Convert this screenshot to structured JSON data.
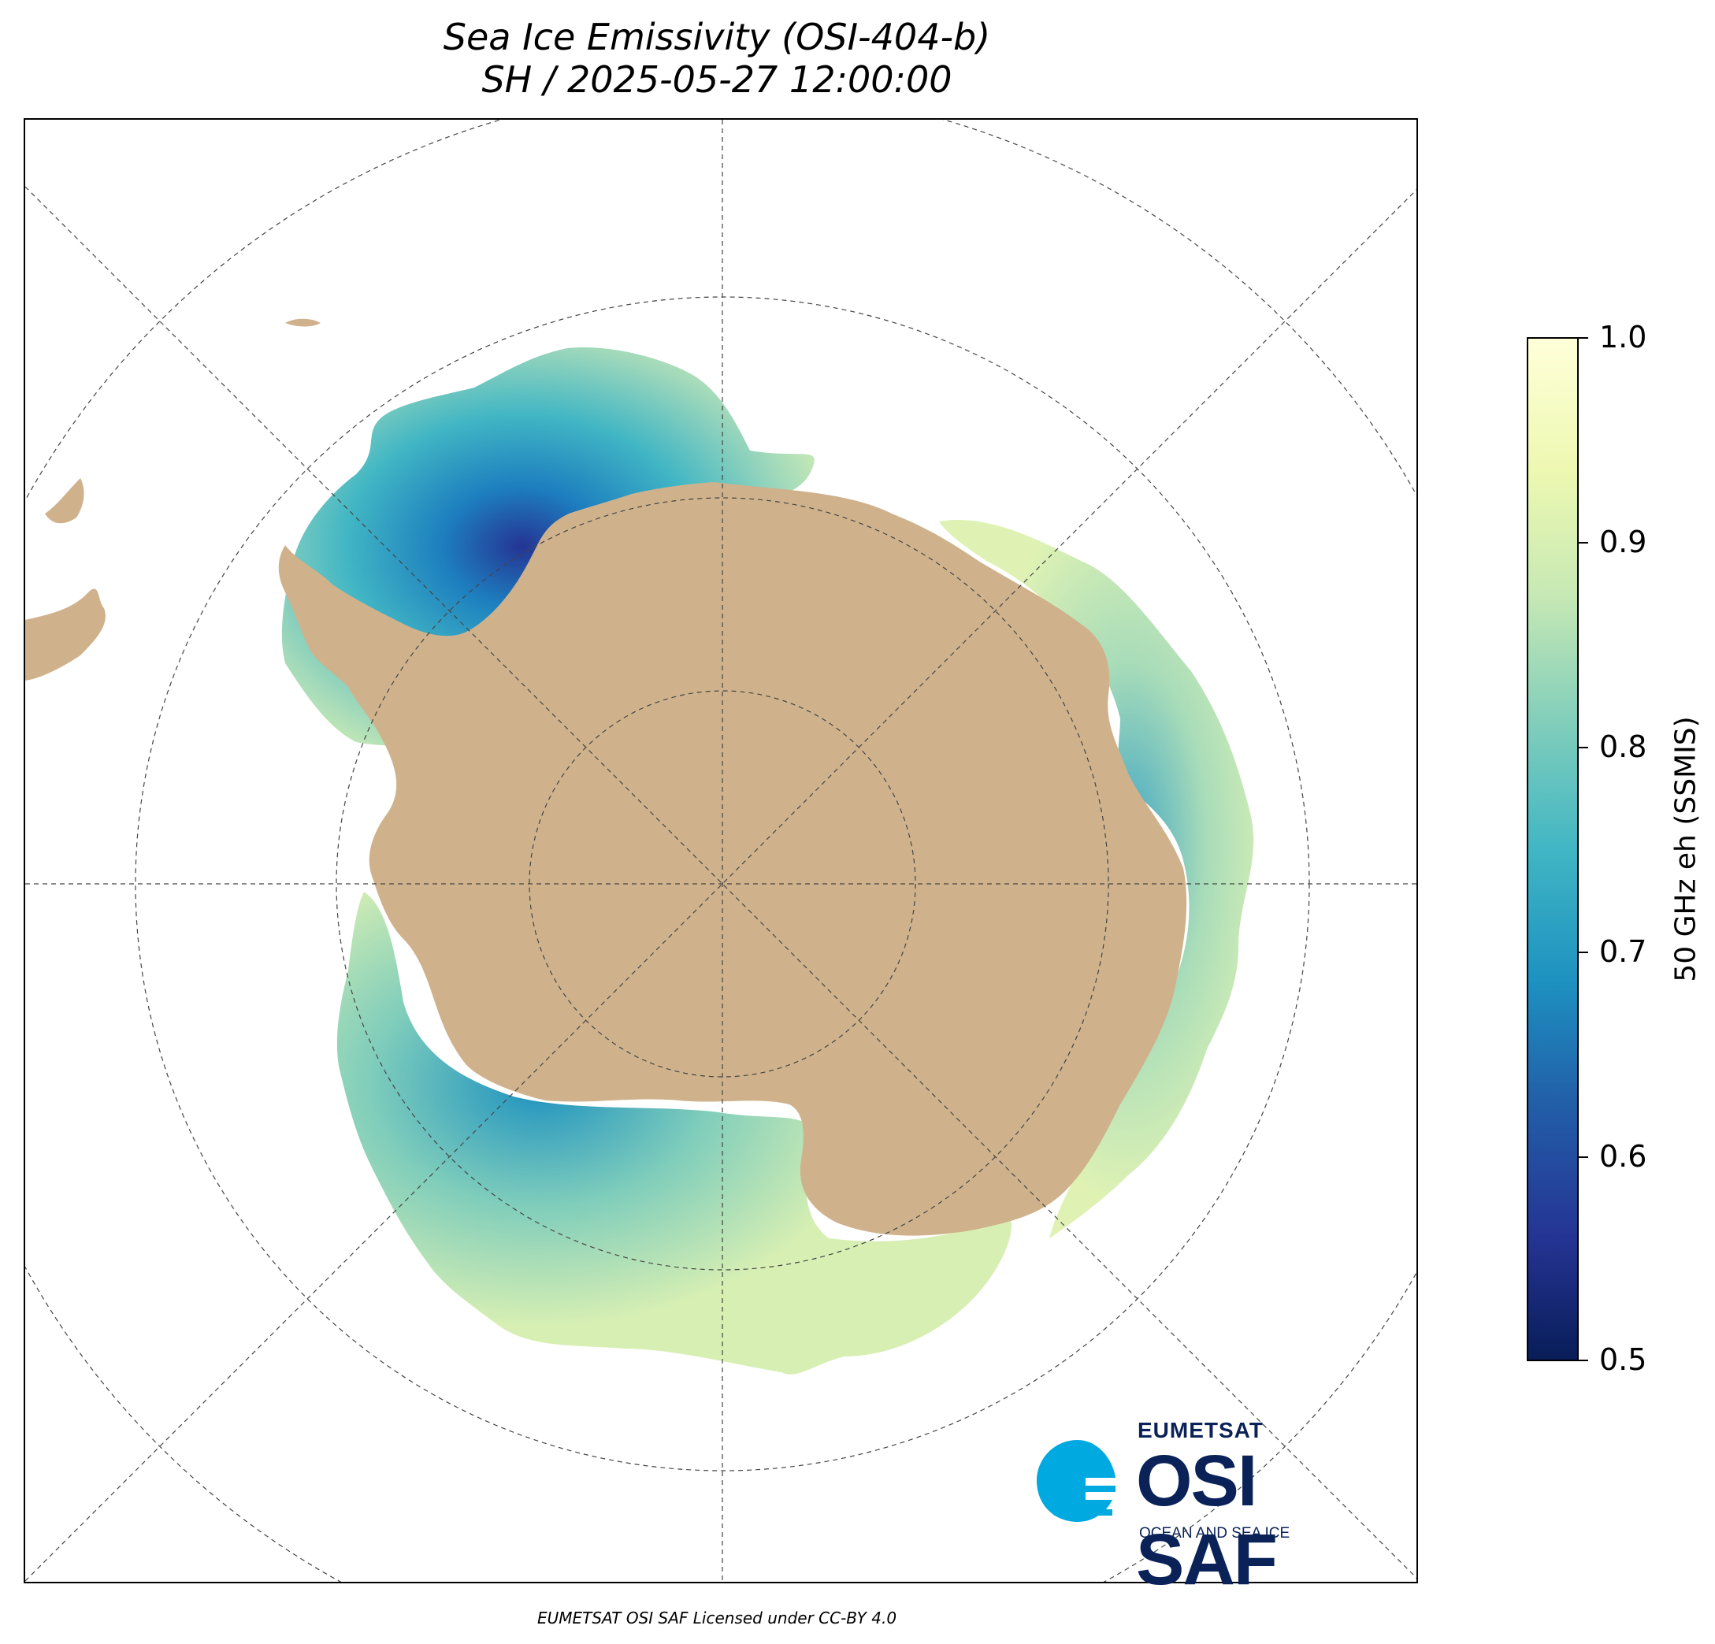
{
  "title": {
    "line1": "Sea Ice Emissivity (OSI-404-b)",
    "line2": "SH / 2025-05-27 12:00:00"
  },
  "colorbar": {
    "label": "50 GHz eh (SSMIS)",
    "ticks": [
      "0.5",
      "0.6",
      "0.7",
      "0.8",
      "0.9",
      "1.0"
    ],
    "range": [
      0.5,
      1.0
    ],
    "colormap": [
      "#081d58",
      "#253494",
      "#225ea8",
      "#1d91c0",
      "#41b6c4",
      "#7fcdbb",
      "#c7e9b4",
      "#edf8b1",
      "#ffffd9"
    ]
  },
  "map": {
    "projection": "south polar stereographic",
    "land_color": "#cfb28c",
    "gridline_color": "#444444"
  },
  "logo": {
    "org": "EUMETSAT",
    "name": "OSI SAF",
    "tagline": "OCEAN AND SEA ICE",
    "accent_color": "#00a9e0",
    "text_color": "#0a2258"
  },
  "footer": "EUMETSAT OSI SAF Licensed under CC-BY 4.0"
}
